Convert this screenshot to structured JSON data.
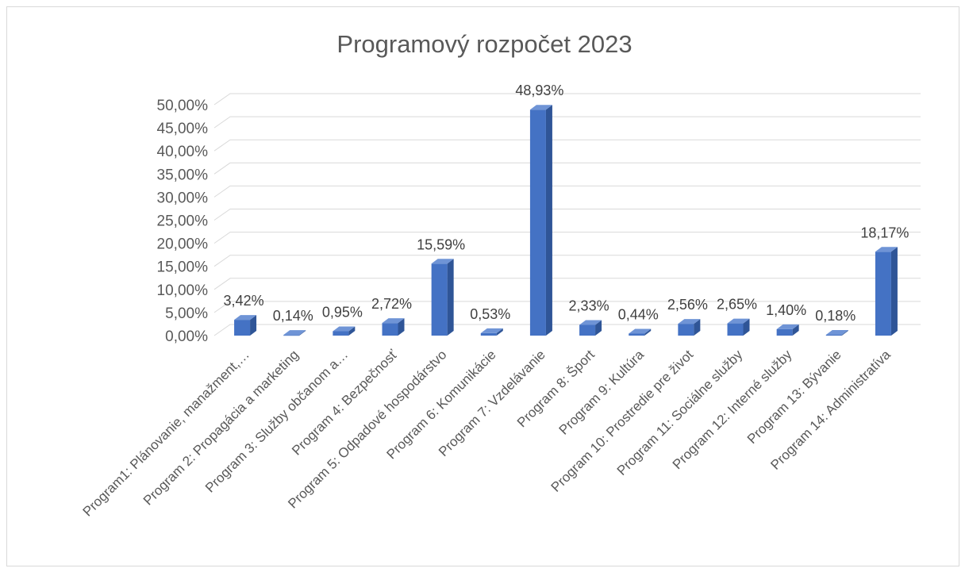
{
  "chart_data": {
    "type": "bar",
    "style": "3d-column",
    "title": "Programový rozpočet 2023",
    "xlabel": "",
    "ylabel": "",
    "ylim": [
      0,
      50
    ],
    "ytick_step": 5,
    "ytick_labels": [
      "0,00%",
      "5,00%",
      "10,00%",
      "15,00%",
      "20,00%",
      "25,00%",
      "30,00%",
      "35,00%",
      "40,00%",
      "45,00%",
      "50,00%"
    ],
    "grid": true,
    "legend": "none",
    "colors": {
      "bar_front": "#4472c4",
      "bar_side": "#2f5597",
      "bar_top": "#6f94d6",
      "grid": "#d9d9d9"
    },
    "categories": [
      "Program1: Plánovanie, manažment,…",
      "Program 2:  Propagácia a marketing",
      "Program 3: Služby občanom a…",
      "Program 4: Bezpečnosť",
      "Program 5: Odpadové hospodárstvo",
      "Program 6: Komunikácie",
      "Program 7: Vzdelávanie",
      "Program 8: Šport",
      "Program 9: Kultúra",
      "Program 10: Prostredie pre život",
      "Program 11: Sociálne služby",
      "Program 12: Interné služby",
      "Program 13: Bývanie",
      "Program 14: Administratíva"
    ],
    "values": [
      3.42,
      0.14,
      0.95,
      2.72,
      15.59,
      0.53,
      48.93,
      2.33,
      0.44,
      2.56,
      2.65,
      1.4,
      0.18,
      18.17
    ],
    "data_labels": [
      "3,42%",
      "0,14%",
      "0,95%",
      "2,72%",
      "15,59%",
      "0,53%",
      "48,93%",
      "2,33%",
      "0,44%",
      "2,56%",
      "2,65%",
      "1,40%",
      "0,18%",
      "18,17%"
    ]
  }
}
